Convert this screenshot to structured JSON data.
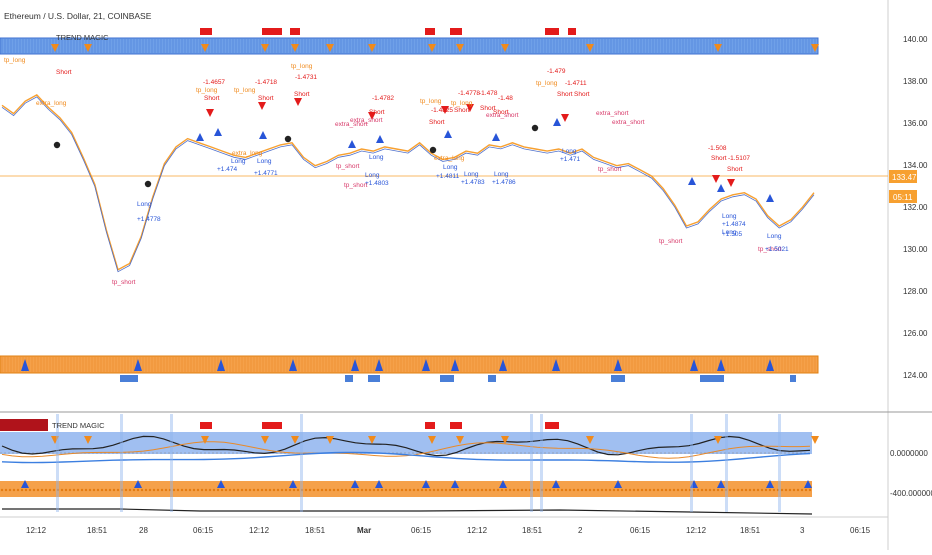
{
  "header": {
    "symbol_title": "Ethereum / U.S. Dollar, 21, COINBASE"
  },
  "indicator_labels": {
    "top": "TREND MAGIC",
    "bottom": "TREND MAGIC"
  },
  "price_axis": {
    "ticks": [
      "140.00",
      "138.00",
      "136.00",
      "134.00",
      "132.00",
      "130.00",
      "128.00",
      "126.00",
      "124.00"
    ],
    "last_price": "133.47",
    "countdown": "05:11"
  },
  "osc_axis": {
    "ticks": [
      "0.0000000",
      "-400.0000000"
    ]
  },
  "time_axis": {
    "ticks": [
      "12:12",
      "18:51",
      "28",
      "06:15",
      "12:12",
      "18:51",
      "Mar",
      "06:15",
      "12:12",
      "18:51",
      "2",
      "06:15",
      "12:12",
      "18:51",
      "3",
      "06:15"
    ]
  },
  "colors": {
    "blue_band": "#6fa0e8",
    "orange_band": "#f5a14a",
    "price_line": "#f7a030",
    "up_mark": "#2855d8",
    "down_mark": "#d81e1e",
    "signal_orange": "#f08a1c",
    "signal_red": "#e31b1b"
  },
  "chart_data": {
    "type": "line",
    "title": "Ethereum / U.S. Dollar, 21, COINBASE",
    "ylim": [
      123,
      141.5
    ],
    "x": [
      0,
      3,
      6,
      9,
      12,
      15,
      18,
      21,
      24,
      27,
      30,
      33,
      36,
      39,
      42,
      45,
      48,
      51,
      54,
      57,
      60,
      63,
      66,
      69,
      72,
      75,
      78,
      81,
      84,
      87,
      90,
      93,
      96,
      99,
      102,
      105,
      108,
      111,
      114,
      117,
      120,
      123,
      126,
      129,
      132,
      135,
      138,
      141,
      144,
      147,
      150,
      153,
      156,
      159,
      162,
      165,
      168,
      171,
      174,
      177,
      180,
      183,
      186,
      189,
      192,
      195,
      198,
      201,
      204,
      207,
      210
    ],
    "series": [
      {
        "values": [
          137.4,
          137.0,
          137.6,
          137.9,
          137.3,
          136.8,
          136.1,
          134.9,
          133.6,
          131.4,
          129.5,
          129.8,
          131.1,
          133.0,
          134.6,
          135.4,
          135.8,
          135.6,
          135.4,
          135.2,
          135.0,
          134.9,
          135.1,
          135.3,
          135.5,
          135.6,
          134.9,
          134.5,
          134.7,
          135.0,
          135.1,
          135.3,
          135.2,
          135.4,
          135.3,
          135.2,
          135.6,
          135.1,
          134.8,
          134.9,
          135.2,
          135.1,
          135.5,
          135.4,
          135.6,
          135.4,
          135.3,
          135.2,
          135.3,
          135.1,
          135.3,
          134.9,
          134.7,
          134.5,
          134.6,
          134.3,
          134.0,
          133.4,
          132.6,
          131.6,
          131.8,
          132.4,
          132.9,
          133.1,
          133.2,
          132.9,
          132.1,
          131.6,
          131.9,
          132.5,
          133.2
        ]
      }
    ],
    "annotations": [
      "tp_long",
      "Short",
      "extra_long",
      "Long",
      "+1.4778",
      "tp_short",
      "-1.4657",
      "tp_long",
      "Short",
      "tp_long",
      "-1.4718",
      "Short",
      "tp_long",
      "-1.4731",
      "Short",
      "extra_long",
      "Long",
      "+1.474",
      "Long",
      "+1.4771",
      "-1.4782",
      "extra_short",
      "Short",
      "extra_short",
      "tp_short",
      "Long",
      "tp_short",
      "Long",
      "+1.4803",
      "tp_long",
      "-1.4825",
      "Short",
      "-1.4778",
      "-1.478",
      "Short",
      "Short",
      "-1.48",
      "tp_long",
      "Short",
      "extra_short",
      "extra_long",
      "Long",
      "+1.4811",
      "Long",
      "+1.4783",
      "Long",
      "+1.4786",
      "tp_long",
      "-1.479",
      "-1.4711",
      "Short",
      "Short",
      "extra_short",
      "extra_short",
      "Long",
      "+1.471",
      "tp_short",
      "-1.508",
      "Short",
      "-1.5107",
      "Short",
      "Long",
      "+1.4874",
      "tp_short",
      "Long",
      "+1.505",
      "tp_short",
      "Long",
      "+1.5021"
    ]
  }
}
